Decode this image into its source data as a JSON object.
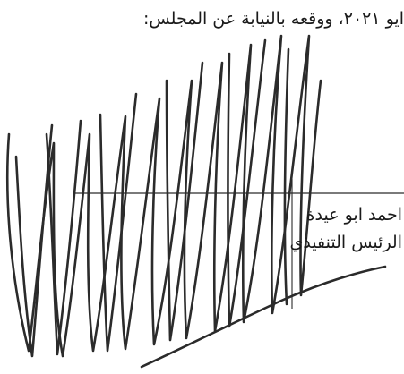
{
  "document": {
    "intro_line": "ايو ٢٠٢١، ووقعه بالنيابة عن المجلس:",
    "signatory": {
      "name": "احمد ابو عيدة",
      "title": "الرئيس التنفيذي"
    }
  },
  "colors": {
    "ink": "#1a1a1a",
    "signature_ink": "#2b2b2b",
    "background": "#ffffff"
  }
}
